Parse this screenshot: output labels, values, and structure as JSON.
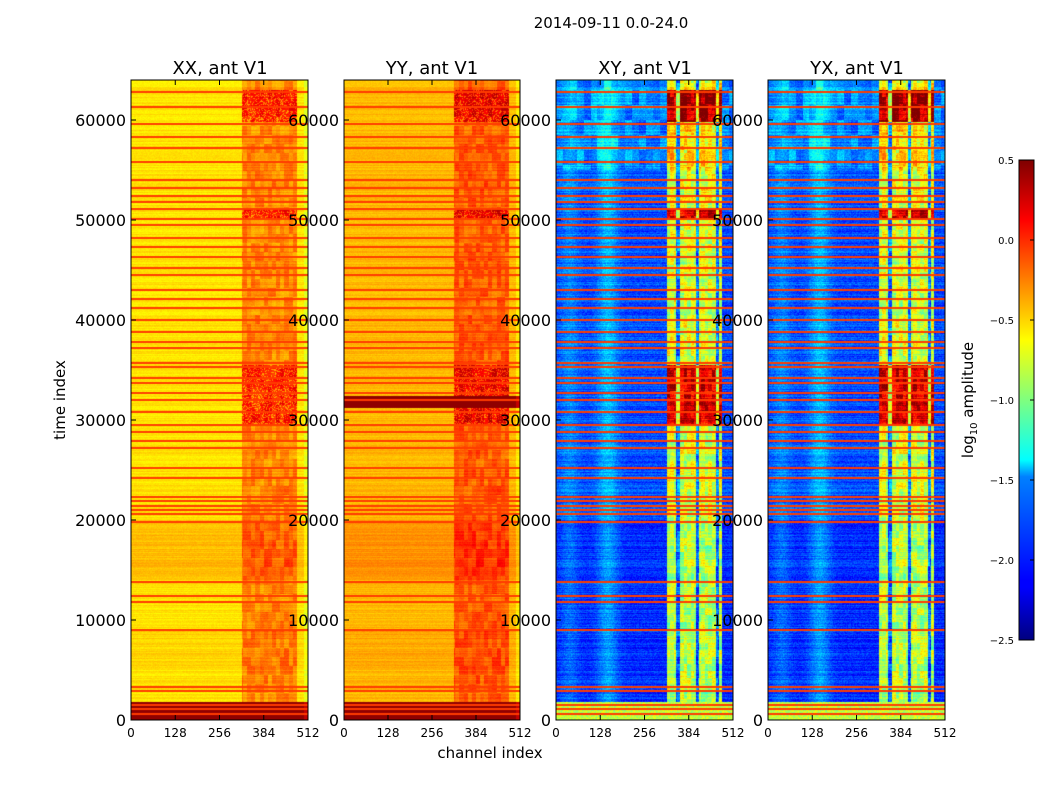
{
  "suptitle": "2014-09-11 0.0-24.0",
  "chart_data": {
    "type": "heatmap",
    "xlabel": "channel index",
    "ylabel": "time index",
    "colorbar_label_prefix": "log",
    "colorbar_label_sub": "10",
    "colorbar_label_suffix": " amplitude",
    "xlim": [
      0,
      512
    ],
    "ylim": [
      0,
      64000
    ],
    "x_ticks": [
      0,
      128,
      256,
      384,
      512
    ],
    "y_ticks": [
      0,
      10000,
      20000,
      30000,
      40000,
      50000,
      60000
    ],
    "y_tick_labels": [
      "0",
      "10000",
      "20000",
      "30000",
      "40000",
      "50000",
      "60000"
    ],
    "color_range": [
      -2.5,
      0.5
    ],
    "colorbar_ticks": [
      0.5,
      0.0,
      -0.5,
      -1.0,
      -1.5,
      -2.0,
      -2.5
    ],
    "colorbar_tick_labels": [
      "0.5",
      "0.0",
      "−0.5",
      "−1.0",
      "−1.5",
      "−2.0",
      "−2.5"
    ],
    "colormap": "jet",
    "panels": [
      {
        "title": "XX, ant V1",
        "base": -0.55,
        "kind": "auto"
      },
      {
        "title": "YY, ant V1",
        "base": -0.42,
        "kind": "auto"
      },
      {
        "title": "XY, ant V1",
        "base": -2.0,
        "kind": "cross"
      },
      {
        "title": "YX, ant V1",
        "base": -2.0,
        "kind": "cross"
      }
    ],
    "flagged_rows": [
      600,
      1100,
      1500,
      2900,
      3300,
      9000,
      11800,
      12400,
      13800,
      19800,
      20600,
      21000,
      21400,
      21900,
      22300,
      24200,
      25200,
      27200,
      27900,
      28800,
      29500,
      30800,
      32000,
      32700,
      33700,
      34200,
      35300,
      35700,
      37200,
      37800,
      38800,
      40000,
      41200,
      42100,
      43000,
      44500,
      45200,
      46300,
      47300,
      48200,
      49500,
      50100,
      51100,
      51800,
      52400,
      53200,
      54000,
      55800,
      57200,
      58300,
      59600,
      61300,
      62800
    ],
    "rfi_channel_range": [
      320,
      480
    ],
    "bright_bands": [
      [
        0,
        1800
      ],
      [
        29500,
        35500
      ],
      [
        50000,
        51000
      ],
      [
        59800,
        63000
      ]
    ]
  }
}
